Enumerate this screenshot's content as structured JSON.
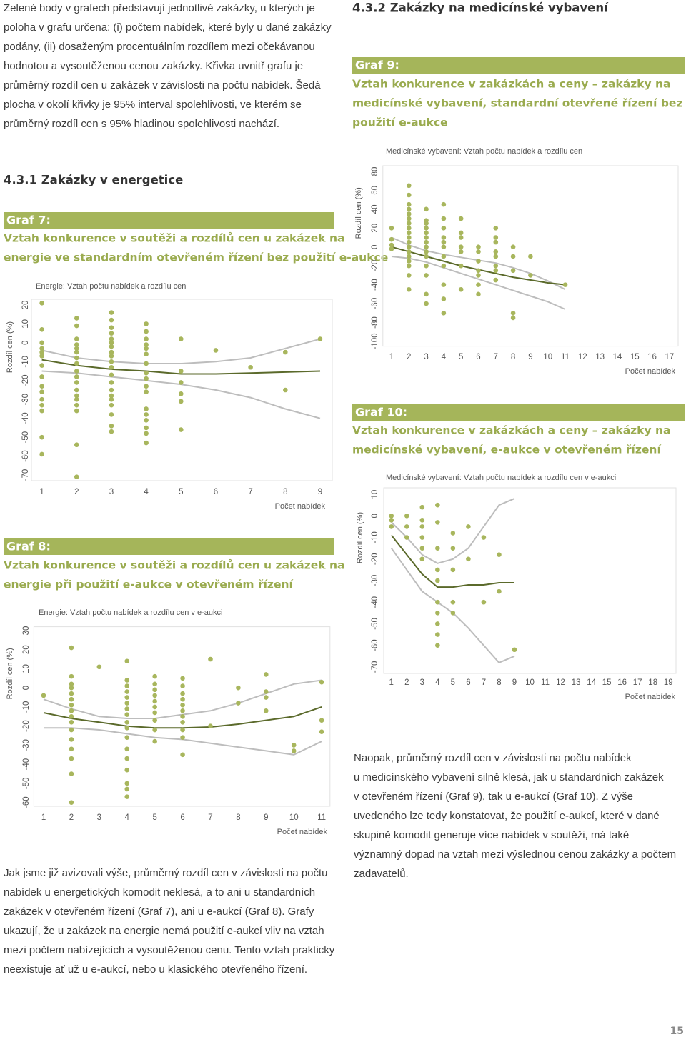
{
  "intro": {
    "lines": [
      "Zelené body v grafech představují jednotlivé zakázky, u kterých je",
      "poloha v grafu určena: (i) počtem nabídek, které byly u dané zakázky",
      "podány, (ii) dosaženým procentuálním rozdílem mezi očekávanou",
      "hodnotou a vysoutěženou cenou zakázky. Křivka uvnitř grafu je",
      "průměrný rozdíl cen u zakázek v závislosti na počtu nabídek. Šedá",
      "plocha v okolí křivky je 95% interval spolehlivosti, ve kterém se",
      "průměrný rozdíl cen s 95% hladinou spolehlivosti nachází."
    ]
  },
  "section_energy": "4.3.1 Zakázky v energetice",
  "section_medical": "4.3.2 Zakázky na medicínské vybavení",
  "figures": [
    {
      "label": "Graf 7:",
      "title_lines": [
        "Vztah konkurence v soutěži a rozdílů cen u zakázek na",
        "energie ve standardním otevřeném řízení bez použití e-aukce"
      ]
    },
    {
      "label": "Graf 8:",
      "title_lines": [
        "Vztah konkurence v soutěži a rozdílů cen u zakázek na",
        "energie při použití e-aukce v otevřeném řízení"
      ]
    },
    {
      "label": "Graf 9:",
      "title_lines": [
        "Vztah konkurence v zakázkách a ceny – zakázky na",
        "medicínské vybavení, standardní otevřené řízení bez",
        "použití e-aukce"
      ]
    },
    {
      "label": "Graf 10:",
      "title_lines": [
        "Vztah konkurence v zakázkách a ceny – zakázky na",
        "medicínské vybavení, e-aukce v otevřeném řízení"
      ]
    }
  ],
  "conclusion_energy": {
    "lines": [
      "Jak jsme již avizovali výše, průměrný rozdíl cen v závislosti na počtu",
      "nabídek u energetických komodit neklesá, a to ani u standardních",
      "zakázek v otevřeném řízení (Graf 7), ani u e-aukcí (Graf 8). Grafy",
      "ukazují, že u zakázek na energie nemá použití e-aukcí vliv na vztah",
      "mezi počtem nabízejících a vysoutěženou cenu. Tento vztah prakticky",
      "neexistuje ať už u e-aukcí, nebo u klasického otevřeného řízení."
    ]
  },
  "conclusion_medical": {
    "lines": [
      "Naopak, průměrný rozdíl cen v závislosti na počtu nabídek",
      "u medicínského vybavení silně klesá, jak u standardních zakázek",
      "v otevřeném řízení (Graf 9), tak u e-aukcí (Graf 10). Z výše",
      "uvedeného lze tedy konstatovat, že použití e-aukcí, které v dané",
      "skupině komodit generuje více nabídek v soutěži, má také",
      "významný dopad na vztah mezi výslednou cenou zakázky a počtem",
      "zadavatelů."
    ]
  },
  "page_number": "15",
  "chart_data": [
    {
      "type": "scatter",
      "title": "Energie: Vztah počtu nabídek a rozdílu cen",
      "x_label": "Počet nabídek",
      "y_label": "Rozdíl cen (%)",
      "xlim": [
        0.7,
        9.35
      ],
      "ylim": [
        -73,
        23
      ],
      "xticks": [
        1,
        2,
        3,
        4,
        5,
        6,
        7,
        8,
        9
      ],
      "yticks": [
        -70,
        -60,
        -50,
        -40,
        -30,
        -20,
        -10,
        0,
        10,
        20
      ],
      "series": [
        {
          "mark": "line",
          "color": "#bdbdbd",
          "x": [
            1,
            2,
            3,
            4,
            5,
            6,
            7,
            8,
            9
          ],
          "y": [
            -4,
            -8,
            -10,
            -11,
            -11,
            -10,
            -8,
            -3,
            2
          ]
        },
        {
          "mark": "line",
          "color": "#bdbdbd",
          "x": [
            1,
            2,
            3,
            4,
            5,
            6,
            7,
            8,
            9
          ],
          "y": [
            -15,
            -16,
            -18,
            -20,
            -22,
            -25,
            -29,
            -35,
            -40
          ]
        },
        {
          "mark": "line",
          "color": "#5b6a2b",
          "x": [
            1,
            2,
            3,
            4,
            5,
            6,
            7,
            8,
            9
          ],
          "y": [
            -9,
            -12,
            -14,
            -15,
            -16.5,
            -16.5,
            -16,
            -15.5,
            -15
          ]
        },
        {
          "mark": "point",
          "color": "#a8b65d",
          "x": [
            1,
            1,
            1,
            1,
            1,
            1,
            1,
            1,
            1,
            1,
            1,
            1,
            1,
            1,
            1,
            2,
            2,
            2,
            2,
            2,
            2,
            2,
            2,
            2,
            2,
            2,
            2,
            2,
            2,
            2,
            2,
            2,
            2,
            3,
            3,
            3,
            3,
            3,
            3,
            3,
            3,
            3,
            3,
            3,
            3,
            3,
            3,
            3,
            3,
            3,
            3,
            3,
            3,
            4,
            4,
            4,
            4,
            4,
            4,
            4,
            4,
            4,
            4,
            4,
            4,
            4,
            4,
            4,
            4,
            4,
            5,
            5,
            5,
            5,
            5,
            5,
            6,
            7,
            8,
            8,
            9
          ],
          "y": [
            21,
            7,
            0,
            -3,
            -5,
            -7,
            -12,
            -18,
            -23,
            -26,
            -30,
            -33,
            -36,
            -50,
            -59,
            13,
            9,
            2,
            -1,
            -3,
            -5,
            -8,
            -11,
            -15,
            -18,
            -21,
            -25,
            -28,
            -30,
            -33,
            -36,
            -54,
            -71,
            16,
            12,
            8,
            5,
            2,
            0,
            -2,
            -5,
            -7,
            -10,
            -13,
            -17,
            -21,
            -25,
            -28,
            -30,
            -33,
            -38,
            -44,
            -47,
            10,
            6,
            2,
            -1,
            -3,
            -6,
            -11,
            -16,
            -19,
            -23,
            -26,
            -35,
            -38,
            -41,
            -45,
            -48,
            -53,
            2,
            -15,
            -21,
            -27,
            -31,
            -46,
            -4,
            -13,
            -5,
            -25,
            2
          ]
        }
      ]
    },
    {
      "type": "scatter",
      "title": "Energie: Vztah počtu nabídek a rozdílu cen v e-aukci",
      "x_label": "Počet nabídek",
      "y_label": "Rozdíl cen (%)",
      "xlim": [
        0.65,
        11.3
      ],
      "ylim": [
        -62,
        32
      ],
      "xticks": [
        1,
        2,
        3,
        4,
        5,
        6,
        7,
        8,
        9,
        10,
        11
      ],
      "yticks": [
        -60,
        -50,
        -40,
        -30,
        -20,
        -10,
        0,
        10,
        20,
        30
      ],
      "series": [
        {
          "mark": "line",
          "color": "#bdbdbd",
          "x": [
            1,
            2,
            3,
            4,
            5,
            6,
            7,
            8,
            9,
            10,
            11
          ],
          "y": [
            -6,
            -11,
            -15,
            -16,
            -16,
            -14,
            -12,
            -8,
            -3,
            2,
            4
          ]
        },
        {
          "mark": "line",
          "color": "#bdbdbd",
          "x": [
            1,
            2,
            3,
            4,
            5,
            6,
            7,
            8,
            9,
            10,
            11
          ],
          "y": [
            -21,
            -21,
            -22,
            -24,
            -26,
            -27,
            -29,
            -31,
            -33,
            -35,
            -28
          ]
        },
        {
          "mark": "line",
          "color": "#5b6a2b",
          "x": [
            1,
            2,
            3,
            4,
            5,
            6,
            7,
            8,
            9,
            10,
            11
          ],
          "y": [
            -13,
            -16,
            -18,
            -20,
            -21,
            -21,
            -20.5,
            -19,
            -17,
            -15,
            -10
          ]
        },
        {
          "mark": "point",
          "color": "#a8b65d",
          "x": [
            1,
            2,
            2,
            2,
            2,
            2,
            2,
            2,
            2,
            2,
            2,
            2,
            2,
            2,
            2,
            2,
            2,
            3,
            4,
            4,
            4,
            4,
            4,
            4,
            4,
            4,
            4,
            4,
            4,
            4,
            4,
            4,
            4,
            4,
            4,
            5,
            5,
            5,
            5,
            5,
            5,
            5,
            5,
            5,
            5,
            6,
            6,
            6,
            6,
            6,
            6,
            6,
            6,
            6,
            6,
            6,
            7,
            7,
            8,
            8,
            9,
            9,
            9,
            9,
            10,
            10,
            11,
            11,
            11
          ],
          "y": [
            -4,
            21,
            6,
            2,
            0,
            -3,
            -6,
            -9,
            -12,
            -15,
            -18,
            -22,
            -27,
            -32,
            -37,
            -45,
            -60,
            11,
            14,
            4,
            1,
            -2,
            -5,
            -8,
            -11,
            -14,
            -18,
            -21,
            -26,
            -32,
            -37,
            -43,
            -50,
            -53,
            -57,
            6,
            2,
            -1,
            -4,
            -7,
            -10,
            -13,
            -17,
            -22,
            -28,
            5,
            1,
            -3,
            -6,
            -9,
            -12,
            -15,
            -18,
            -22,
            -26,
            -35,
            15,
            -20,
            0,
            -8,
            7,
            -2,
            -5,
            -12,
            -30,
            -33,
            3,
            -17,
            -23
          ]
        }
      ]
    },
    {
      "type": "scatter",
      "title": "Medicínské vybavení: Vztah počtu nabídek a rozdílu cen",
      "x_label": "Počet nabídek",
      "y_label": "Rozdíl cen (%)",
      "xlim": [
        0.5,
        17.5
      ],
      "ylim": [
        -105,
        86
      ],
      "xticks": [
        1,
        2,
        3,
        4,
        5,
        6,
        7,
        8,
        9,
        10,
        11,
        12,
        13,
        14,
        15,
        16,
        17
      ],
      "yticks": [
        -100,
        -80,
        -60,
        -40,
        -20,
        0,
        20,
        40,
        60,
        80
      ],
      "series": [
        {
          "mark": "line",
          "color": "#bdbdbd",
          "x": [
            1,
            2,
            3,
            4,
            5,
            6,
            7,
            8,
            9,
            10,
            11
          ],
          "y": [
            10,
            2,
            -4,
            -8,
            -11,
            -14,
            -17,
            -22,
            -28,
            -36,
            -45
          ]
        },
        {
          "mark": "line",
          "color": "#bdbdbd",
          "x": [
            1,
            2,
            3,
            4,
            5,
            6,
            7,
            8,
            9,
            10,
            11
          ],
          "y": [
            -10,
            -12,
            -16,
            -22,
            -28,
            -34,
            -40,
            -46,
            -52,
            -58,
            -66
          ]
        },
        {
          "mark": "line",
          "color": "#5b6a2b",
          "x": [
            1,
            2,
            3,
            4,
            5,
            6,
            7,
            8,
            9,
            10,
            11
          ],
          "y": [
            0,
            -5,
            -10,
            -15,
            -20,
            -24,
            -28,
            -32,
            -35,
            -38,
            -40
          ]
        },
        {
          "mark": "point",
          "color": "#a8b65d",
          "x": [
            1,
            1,
            1,
            1,
            2,
            2,
            2,
            2,
            2,
            2,
            2,
            2,
            2,
            2,
            2,
            2,
            2,
            2,
            2,
            2,
            2,
            2,
            3,
            3,
            3,
            3,
            3,
            3,
            3,
            3,
            3,
            3,
            3,
            3,
            3,
            3,
            4,
            4,
            4,
            4,
            4,
            4,
            4,
            4,
            4,
            4,
            4,
            5,
            5,
            5,
            5,
            5,
            5,
            5,
            6,
            6,
            6,
            6,
            6,
            6,
            6,
            7,
            7,
            7,
            7,
            7,
            7,
            7,
            7,
            8,
            8,
            8,
            8,
            8,
            9,
            9,
            11
          ],
          "y": [
            20,
            8,
            2,
            -2,
            65,
            55,
            45,
            40,
            35,
            30,
            25,
            20,
            15,
            10,
            5,
            0,
            -5,
            -10,
            -15,
            -20,
            -30,
            -45,
            40,
            28,
            25,
            20,
            15,
            10,
            5,
            0,
            -5,
            -10,
            -20,
            -30,
            -50,
            -60,
            45,
            30,
            20,
            10,
            5,
            0,
            -10,
            -20,
            -40,
            -55,
            -70,
            30,
            15,
            10,
            0,
            -5,
            -20,
            -45,
            0,
            -5,
            -15,
            -25,
            -30,
            -40,
            -50,
            20,
            10,
            5,
            -5,
            -10,
            -20,
            -25,
            -35,
            0,
            -10,
            -25,
            -70,
            -75,
            -10,
            -30,
            -40
          ]
        }
      ]
    },
    {
      "type": "scatter",
      "title": "Medicínské vybavení: Vztah počtu nabídek a rozdílu cen v e-aukci",
      "x_label": "Počet nabídek",
      "y_label": "Rozdíl cen (%)",
      "xlim": [
        0.5,
        19.5
      ],
      "ylim": [
        -73,
        13
      ],
      "xticks": [
        1,
        2,
        3,
        4,
        5,
        6,
        7,
        8,
        9,
        10,
        11,
        12,
        13,
        14,
        15,
        16,
        17,
        18,
        19
      ],
      "yticks": [
        -70,
        -60,
        -50,
        -40,
        -30,
        -20,
        -10,
        0,
        10
      ],
      "series": [
        {
          "mark": "line",
          "color": "#bdbdbd",
          "x": [
            1,
            2,
            3,
            4,
            5,
            6,
            7,
            8,
            9
          ],
          "y": [
            -3,
            -10,
            -18,
            -22,
            -20,
            -15,
            -5,
            5,
            8
          ]
        },
        {
          "mark": "line",
          "color": "#bdbdbd",
          "x": [
            1,
            2,
            3,
            4,
            5,
            6,
            7,
            8,
            9
          ],
          "y": [
            -15,
            -25,
            -35,
            -40,
            -45,
            -52,
            -60,
            -68,
            -65
          ]
        },
        {
          "mark": "line",
          "color": "#5b6a2b",
          "x": [
            1,
            2,
            3,
            4,
            5,
            6,
            7,
            8,
            9
          ],
          "y": [
            -9,
            -18,
            -27,
            -33,
            -33,
            -32,
            -32,
            -31,
            -31
          ]
        },
        {
          "mark": "point",
          "color": "#a8b65d",
          "x": [
            1,
            1,
            1,
            2,
            2,
            2,
            3,
            3,
            3,
            3,
            3,
            3,
            4,
            4,
            4,
            4,
            4,
            4,
            4,
            4,
            4,
            4,
            5,
            5,
            5,
            5,
            5,
            6,
            6,
            7,
            7,
            8,
            8,
            9
          ],
          "y": [
            0,
            -2,
            -5,
            0,
            -5,
            -10,
            4,
            -2,
            -5,
            -10,
            -15,
            -20,
            5,
            -3,
            -15,
            -25,
            -30,
            -40,
            -45,
            -50,
            -55,
            -60,
            -8,
            -15,
            -25,
            -40,
            -45,
            -5,
            -20,
            -10,
            -40,
            -18,
            -35,
            -62
          ]
        }
      ]
    }
  ]
}
